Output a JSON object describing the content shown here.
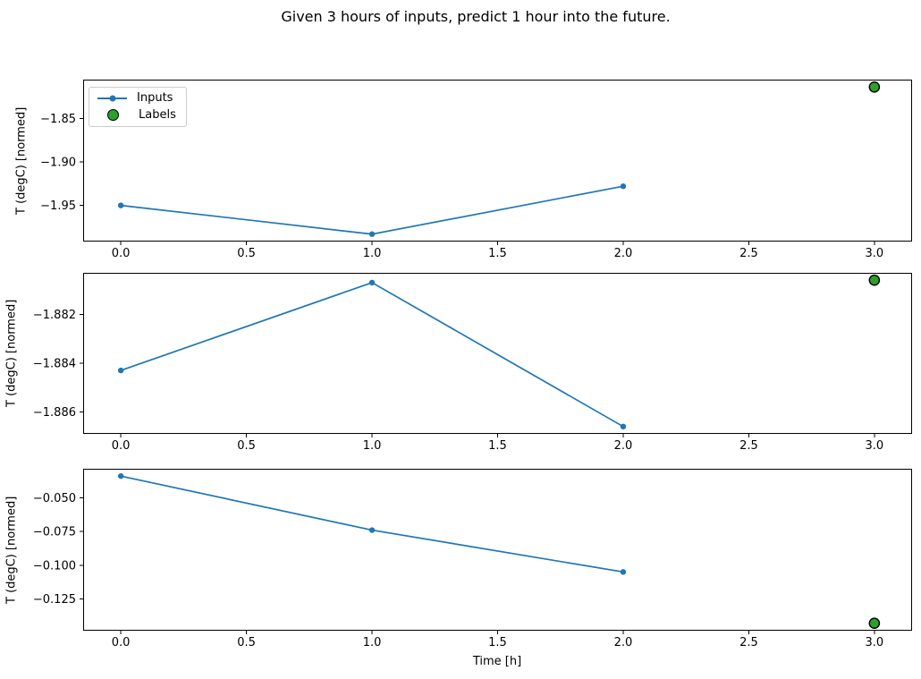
{
  "title": "Given 3 hours of inputs, predict 1 hour into the future.",
  "xlabel": "Time [h]",
  "legend": {
    "items": [
      {
        "label": "Inputs",
        "type": "line-with-marker",
        "color": "#1f77b4"
      },
      {
        "label": "Labels",
        "type": "filled-circle",
        "fill": "#2ca02c",
        "edge": "#000000"
      }
    ]
  },
  "colors": {
    "inputs_line": "#1f77b4",
    "labels_fill": "#2ca02c",
    "labels_edge": "#000000",
    "axis": "#000000"
  },
  "chart_data": [
    {
      "type": "line",
      "ylabel": "T (degC) [normed]",
      "xlim": [
        -0.15,
        3.15
      ],
      "ylim": [
        -1.9915,
        -1.8055
      ],
      "xticks": [
        0,
        0.5,
        1,
        1.5,
        2,
        2.5,
        3
      ],
      "xtick_labels": [
        "0.0",
        "0.5",
        "1.0",
        "1.5",
        "2.0",
        "2.5",
        "3.0"
      ],
      "yticks": [
        -1.85,
        -1.9,
        -1.95
      ],
      "ytick_labels": [
        "−1.85",
        "−1.90",
        "−1.95"
      ],
      "series": [
        {
          "name": "Inputs",
          "type": "line",
          "x": [
            0,
            1,
            2
          ],
          "y": [
            -1.95,
            -1.983,
            -1.928
          ],
          "color": "#1f77b4"
        },
        {
          "name": "Labels",
          "type": "scatter",
          "x": [
            3
          ],
          "y": [
            -1.814
          ],
          "fill": "#2ca02c",
          "edge": "#000000"
        }
      ]
    },
    {
      "type": "line",
      "ylabel": "T (degC) [normed]",
      "xlim": [
        -0.15,
        3.15
      ],
      "ylim": [
        -1.8869,
        -1.8803
      ],
      "xticks": [
        0,
        0.5,
        1,
        1.5,
        2,
        2.5,
        3
      ],
      "xtick_labels": [
        "0.0",
        "0.5",
        "1.0",
        "1.5",
        "2.0",
        "2.5",
        "3.0"
      ],
      "yticks": [
        -1.882,
        -1.884,
        -1.886
      ],
      "ytick_labels": [
        "−1.882",
        "−1.884",
        "−1.886"
      ],
      "series": [
        {
          "name": "Inputs",
          "type": "line",
          "x": [
            0,
            1,
            2
          ],
          "y": [
            -1.8843,
            -1.8807,
            -1.8866
          ],
          "color": "#1f77b4"
        },
        {
          "name": "Labels",
          "type": "scatter",
          "x": [
            3
          ],
          "y": [
            -1.8806
          ],
          "fill": "#2ca02c",
          "edge": "#000000"
        }
      ]
    },
    {
      "type": "line",
      "ylabel": "T (degC) [normed]",
      "xlim": [
        -0.15,
        3.15
      ],
      "ylim": [
        -0.1485,
        -0.0286
      ],
      "xticks": [
        0,
        0.5,
        1,
        1.5,
        2,
        2.5,
        3
      ],
      "xtick_labels": [
        "0.0",
        "0.5",
        "1.0",
        "1.5",
        "2.0",
        "2.5",
        "3.0"
      ],
      "yticks": [
        -0.05,
        -0.075,
        -0.1,
        -0.125
      ],
      "ytick_labels": [
        "−0.050",
        "−0.075",
        "−0.100",
        "−0.125"
      ],
      "series": [
        {
          "name": "Inputs",
          "type": "line",
          "x": [
            0,
            1,
            2
          ],
          "y": [
            -0.034,
            -0.074,
            -0.105
          ],
          "color": "#1f77b4"
        },
        {
          "name": "Labels",
          "type": "scatter",
          "x": [
            3
          ],
          "y": [
            -0.143
          ],
          "fill": "#2ca02c",
          "edge": "#000000"
        }
      ]
    }
  ]
}
